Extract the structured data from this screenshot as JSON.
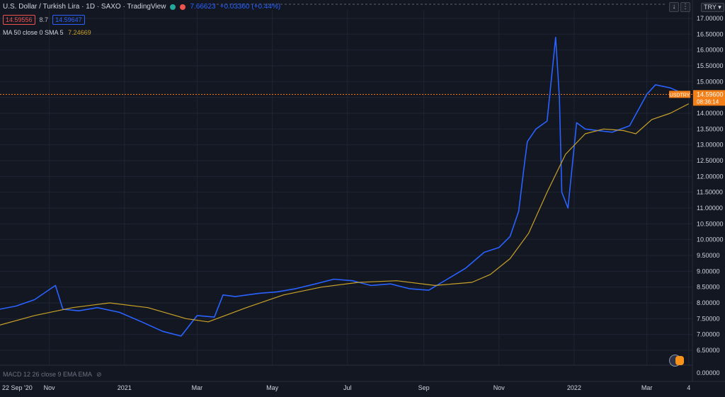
{
  "header": {
    "title": "U.S. Dollar / Turkish Lira · 1D · SAXO · TradingView",
    "last_value": "7.66623",
    "change": "+0.03360 (+0.44%)"
  },
  "price_boxes": {
    "sell": "14.59556",
    "spread": "8.7",
    "buy": "14.59647"
  },
  "indicators": {
    "ma_label": "MA 50 close 0 SMA 5",
    "ma_value": "7.24669",
    "macd_label": "MACD 12 26 close 9 EMA EMA"
  },
  "price_scale": {
    "currency": "TRY",
    "last_price": "14.59600",
    "countdown": "08:36:14",
    "symbol_tag": "USDTRY"
  },
  "colors": {
    "background": "#131722",
    "price_line": "#2962ff",
    "ma_line": "#c9a227",
    "last_price_tag": "#f57f17",
    "text": "#d1d4dc",
    "grid": "#1e2433"
  },
  "chart_data": {
    "type": "line",
    "title": "U.S. Dollar / Turkish Lira",
    "xlabel": "",
    "ylabel": "",
    "ylim": [
      0,
      17
    ],
    "grid": true,
    "x_ticks": [
      "22 Sep '20",
      "Nov",
      "2021",
      "Mar",
      "May",
      "Jul",
      "Sep",
      "Nov",
      "2022",
      "Mar",
      "4"
    ],
    "y_ticks": [
      "17.00000",
      "16.50000",
      "16.00000",
      "15.50000",
      "15.00000",
      "14.50000",
      "14.00000",
      "13.50000",
      "13.00000",
      "12.50000",
      "12.00000",
      "11.50000",
      "11.00000",
      "10.50000",
      "10.00000",
      "9.50000",
      "9.00000",
      "8.50000",
      "8.00000",
      "7.50000",
      "7.00000",
      "6.50000",
      "0.00000"
    ],
    "series": [
      {
        "name": "USDTRY",
        "x": [
          "2020-09-22",
          "2020-10-05",
          "2020-10-20",
          "2020-11-06",
          "2020-11-12",
          "2020-11-25",
          "2020-12-10",
          "2020-12-28",
          "2021-01-15",
          "2021-02-01",
          "2021-02-16",
          "2021-03-01",
          "2021-03-15",
          "2021-03-22",
          "2021-04-01",
          "2021-04-20",
          "2021-05-05",
          "2021-05-20",
          "2021-06-05",
          "2021-06-20",
          "2021-07-05",
          "2021-07-20",
          "2021-08-05",
          "2021-08-20",
          "2021-09-05",
          "2021-09-20",
          "2021-10-05",
          "2021-10-20",
          "2021-11-01",
          "2021-11-10",
          "2021-11-17",
          "2021-11-22",
          "2021-11-24",
          "2021-12-01",
          "2021-12-10",
          "2021-12-17",
          "2021-12-20",
          "2021-12-22",
          "2021-12-27",
          "2022-01-03",
          "2022-01-10",
          "2022-01-20",
          "2022-02-01",
          "2022-02-15",
          "2022-03-01",
          "2022-03-08",
          "2022-03-20",
          "2022-04-01",
          "2022-04-04"
        ],
        "values": [
          7.8,
          7.9,
          8.1,
          8.55,
          7.8,
          7.75,
          7.85,
          7.7,
          7.4,
          7.1,
          6.95,
          7.6,
          7.55,
          8.25,
          8.2,
          8.3,
          8.35,
          8.45,
          8.6,
          8.75,
          8.7,
          8.55,
          8.6,
          8.45,
          8.4,
          8.75,
          9.1,
          9.6,
          9.75,
          10.1,
          10.9,
          12.5,
          13.1,
          13.5,
          13.75,
          16.4,
          14.5,
          11.5,
          11.0,
          13.7,
          13.5,
          13.45,
          13.4,
          13.6,
          14.6,
          14.9,
          14.8,
          14.6,
          14.6
        ]
      },
      {
        "name": "MA 50",
        "x": [
          "2020-09-22",
          "2020-10-20",
          "2020-11-20",
          "2020-12-20",
          "2021-01-20",
          "2021-02-20",
          "2021-03-10",
          "2021-04-10",
          "2021-05-10",
          "2021-06-10",
          "2021-07-10",
          "2021-08-10",
          "2021-09-10",
          "2021-10-10",
          "2021-10-25",
          "2021-11-10",
          "2021-11-25",
          "2021-12-10",
          "2021-12-25",
          "2022-01-10",
          "2022-01-25",
          "2022-02-10",
          "2022-02-20",
          "2022-03-05",
          "2022-03-20",
          "2022-04-04"
        ],
        "values": [
          7.3,
          7.6,
          7.85,
          8.0,
          7.85,
          7.5,
          7.4,
          7.85,
          8.25,
          8.5,
          8.65,
          8.7,
          8.55,
          8.65,
          8.9,
          9.4,
          10.2,
          11.5,
          12.7,
          13.35,
          13.5,
          13.45,
          13.35,
          13.8,
          14.0,
          14.3
        ]
      }
    ]
  }
}
